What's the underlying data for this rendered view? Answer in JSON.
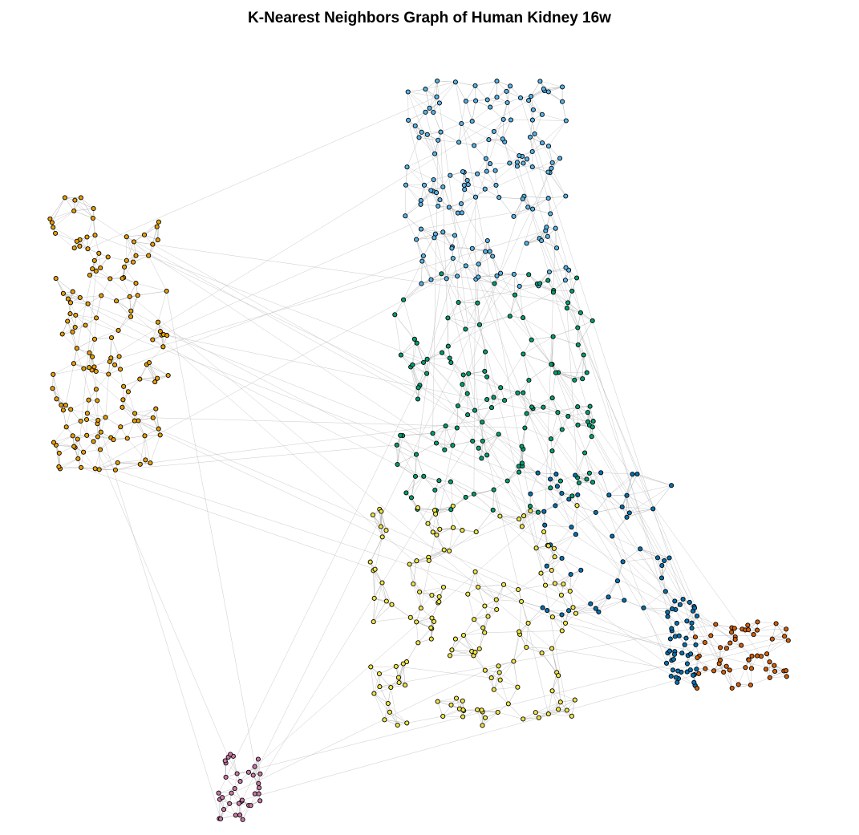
{
  "title": "K-Nearest Neighbors Graph of Human Kidney 16w",
  "graph": {
    "type": "knn-graph",
    "edge_color": "#b3b3b3",
    "node_stroke": "#000000",
    "clusters": [
      {
        "color": "#E69F00",
        "count": 150
      },
      {
        "color": "#56B4E9",
        "count": 150
      },
      {
        "color": "#009E73",
        "count": 140
      },
      {
        "color": "#0072B2",
        "count": 100
      },
      {
        "color": "#F0E442",
        "count": 150
      },
      {
        "color": "#D55E00",
        "count": 55
      },
      {
        "color": "#CC79A7",
        "count": 35
      }
    ]
  }
}
